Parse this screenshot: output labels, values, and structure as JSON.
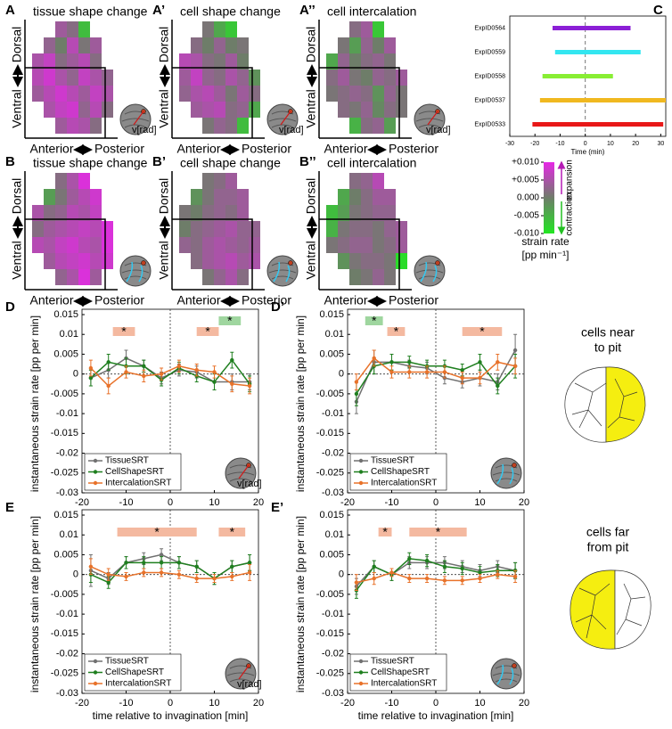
{
  "chart_data": [
    {
      "type": "heatmap",
      "panel": "A",
      "title": "tissue shape change",
      "icon_label": "v[rad]",
      "grid": [
        [
          null,
          null,
          0.004,
          0.002,
          -0.006,
          null,
          null
        ],
        [
          null,
          0.003,
          0.0,
          0.006,
          0.001,
          0.004,
          null
        ],
        [
          0.005,
          0.007,
          0.002,
          0.004,
          0.006,
          0.002,
          null
        ],
        [
          0.006,
          0.008,
          0.005,
          0.003,
          0.007,
          0.005,
          0.003
        ],
        [
          0.004,
          0.006,
          0.008,
          0.006,
          0.004,
          0.007,
          0.005
        ],
        [
          null,
          0.005,
          0.007,
          0.008,
          0.003,
          0.006,
          0.002
        ],
        [
          null,
          null,
          0.004,
          0.006,
          0.005,
          0.002,
          null
        ]
      ]
    },
    {
      "type": "heatmap",
      "panel": "A’",
      "title": "cell shape change",
      "icon_label": "v[rad]",
      "grid": [
        [
          null,
          null,
          0.001,
          -0.004,
          -0.007,
          null,
          null
        ],
        [
          null,
          0.002,
          0.0,
          0.003,
          0.0,
          0.001,
          null
        ],
        [
          0.006,
          0.005,
          0.002,
          0.001,
          0.004,
          0.0,
          null
        ],
        [
          0.004,
          0.007,
          0.003,
          0.002,
          0.005,
          0.003,
          -0.002
        ],
        [
          0.003,
          0.005,
          0.006,
          0.004,
          0.001,
          0.004,
          0.002
        ],
        [
          null,
          0.004,
          0.005,
          0.006,
          0.002,
          0.003,
          -0.004
        ],
        [
          null,
          null,
          0.001,
          0.003,
          0.002,
          -0.006,
          null
        ]
      ]
    },
    {
      "type": "heatmap",
      "panel": "A’’",
      "title": "cell intercalation",
      "icon_label": "v[rad]",
      "grid": [
        [
          null,
          null,
          0.002,
          0.004,
          -0.007,
          null,
          null
        ],
        [
          null,
          0.001,
          -0.003,
          0.003,
          0.0,
          0.004,
          null
        ],
        [
          -0.004,
          0.003,
          0.0,
          0.002,
          0.003,
          0.001,
          null
        ],
        [
          0.002,
          0.004,
          0.001,
          0.0,
          0.003,
          0.002,
          0.004
        ],
        [
          0.001,
          0.002,
          0.003,
          0.002,
          -0.002,
          0.003,
          0.001
        ],
        [
          null,
          0.002,
          0.001,
          0.003,
          -0.001,
          0.002,
          0.001
        ],
        [
          null,
          null,
          -0.005,
          0.002,
          0.003,
          -0.003,
          null
        ]
      ]
    },
    {
      "type": "heatmap",
      "panel": "B",
      "title": "tissue shape change",
      "grid": [
        [
          null,
          null,
          0.002,
          0.005,
          0.009,
          null,
          null
        ],
        [
          null,
          -0.003,
          0.001,
          0.004,
          0.006,
          0.008,
          null
        ],
        [
          0.005,
          0.002,
          0.003,
          0.006,
          0.005,
          0.007,
          null
        ],
        [
          0.002,
          0.004,
          0.005,
          0.006,
          0.007,
          0.006,
          0.009
        ],
        [
          0.006,
          0.005,
          0.007,
          0.008,
          0.006,
          0.005,
          0.009
        ],
        [
          null,
          0.004,
          0.006,
          0.007,
          0.008,
          0.006,
          0.008
        ],
        [
          null,
          null,
          0.003,
          0.005,
          0.009,
          0.004,
          null
        ]
      ]
    },
    {
      "type": "heatmap",
      "panel": "B’",
      "title": "cell shape change",
      "grid": [
        [
          null,
          null,
          0.001,
          0.002,
          0.004,
          null,
          null
        ],
        [
          null,
          -0.002,
          0.001,
          0.003,
          0.003,
          0.004,
          null
        ],
        [
          0.001,
          0.0,
          0.002,
          0.003,
          0.002,
          0.004,
          null
        ],
        [
          0.0,
          0.002,
          0.003,
          0.004,
          0.005,
          0.003,
          0.003
        ],
        [
          0.003,
          0.002,
          0.004,
          0.005,
          0.004,
          0.003,
          0.004
        ],
        [
          null,
          0.002,
          0.004,
          0.005,
          0.006,
          0.004,
          0.005
        ],
        [
          null,
          null,
          0.001,
          0.003,
          0.005,
          0.002,
          null
        ]
      ]
    },
    {
      "type": "heatmap",
      "panel": "B’’",
      "title": "cell intercalation",
      "grid": [
        [
          null,
          null,
          0.002,
          0.003,
          0.006,
          null,
          null
        ],
        [
          null,
          -0.004,
          0.0,
          0.002,
          0.004,
          0.004,
          null
        ],
        [
          -0.006,
          -0.003,
          0.001,
          0.002,
          0.003,
          0.003,
          null
        ],
        [
          -0.005,
          0.001,
          0.002,
          0.002,
          0.001,
          0.003,
          0.004
        ],
        [
          0.001,
          0.002,
          0.003,
          0.003,
          0.001,
          0.002,
          0.004
        ],
        [
          null,
          -0.002,
          0.001,
          0.002,
          0.002,
          0.001,
          -0.009
        ],
        [
          null,
          null,
          0.0,
          0.001,
          0.003,
          0.001,
          null
        ]
      ]
    },
    {
      "type": "range",
      "panel": "C",
      "xlabel": "Time (min)",
      "categories": [
        "ExpID0564",
        "ExpID0559",
        "ExpID0558",
        "ExpID0537",
        "ExpID0533"
      ],
      "ranges": [
        [
          -13,
          18
        ],
        [
          -12,
          22
        ],
        [
          -17,
          11
        ],
        [
          -18,
          32
        ],
        [
          -21,
          31
        ]
      ],
      "colors": [
        "#8b1fd6",
        "#33e6f0",
        "#88ee33",
        "#f0b820",
        "#e81818"
      ],
      "xlim": [
        -30,
        32
      ],
      "xticks": [
        -30,
        -20,
        -10,
        0,
        10,
        20,
        30
      ]
    },
    {
      "type": "line",
      "panel": "D",
      "icon_label": "v[rad]",
      "xlabel": "time relative to invagination [min]",
      "ylabel": "instantaneous strain rate [pp per min]",
      "x": [
        -18,
        -14,
        -10,
        -6,
        -2,
        2,
        6,
        10,
        14,
        18
      ],
      "xlim": [
        -20,
        20
      ],
      "xticks": [
        -20,
        -10,
        0,
        10,
        20
      ],
      "ylim": [
        -0.03,
        0.015
      ],
      "yticks": [
        -0.03,
        -0.025,
        -0.02,
        -0.015,
        -0.01,
        -0.005,
        0,
        0.005,
        0.01,
        0.015
      ],
      "series": [
        {
          "name": "TissueSRT",
          "color": "#707070",
          "values": [
            -0.001,
            0.001,
            0.004,
            0.002,
            -0.001,
            0.001,
            0.0005,
            -0.002,
            -0.002,
            -0.002
          ],
          "errors": [
            0.002,
            0.002,
            0.002,
            0.0015,
            0.0015,
            0.0015,
            0.0015,
            0.002,
            0.002,
            0.002
          ]
        },
        {
          "name": "CellShapeSRT",
          "color": "#1f7f1f",
          "values": [
            -0.001,
            0.003,
            0.002,
            0.002,
            -0.0015,
            0.0015,
            -0.0005,
            -0.002,
            0.0035,
            -0.0025
          ],
          "errors": [
            0.002,
            0.002,
            0.002,
            0.0015,
            0.0015,
            0.0015,
            0.0015,
            0.002,
            0.002,
            0.002
          ]
        },
        {
          "name": "IntercalationSRT",
          "color": "#e8722a",
          "values": [
            0.0015,
            -0.003,
            0.0005,
            -0.0005,
            0,
            0.002,
            0.001,
            0.0005,
            -0.0025,
            -0.003
          ],
          "errors": [
            0.002,
            0.002,
            0.0015,
            0.0015,
            0.0015,
            0.0015,
            0.0015,
            0.0015,
            0.002,
            0.002
          ]
        }
      ],
      "significance": [
        {
          "x": [
            -13,
            -8
          ],
          "color": "#f4b9a0",
          "label": "*"
        },
        {
          "x": [
            6,
            11
          ],
          "color": "#f4b9a0",
          "label": "*"
        },
        {
          "x": [
            11,
            16
          ],
          "color": "#9fd69f",
          "label": "*"
        }
      ]
    },
    {
      "type": "line",
      "panel": "D’",
      "xlabel": "time relative to invagination [min]",
      "ylabel": "instantaneous strain rate [pp per min]",
      "x": [
        -18,
        -14,
        -10,
        -6,
        -2,
        2,
        6,
        10,
        14,
        18
      ],
      "xlim": [
        -20,
        20
      ],
      "xticks": [
        -20,
        -10,
        0,
        10,
        20
      ],
      "ylim": [
        -0.03,
        0.015
      ],
      "yticks": [
        -0.03,
        -0.025,
        -0.02,
        -0.015,
        -0.01,
        -0.005,
        0,
        0.005,
        0.01,
        0.015
      ],
      "series": [
        {
          "name": "TissueSRT",
          "color": "#707070",
          "values": [
            -0.007,
            0.003,
            0.003,
            0.002,
            0.0015,
            -0.001,
            -0.002,
            -0.001,
            -0.002,
            0.006
          ],
          "errors": [
            0.003,
            0.003,
            0.002,
            0.0015,
            0.0015,
            0.0015,
            0.0015,
            0.002,
            0.002,
            0.004
          ]
        },
        {
          "name": "CellShapeSRT",
          "color": "#1f7f1f",
          "values": [
            -0.005,
            0.002,
            0.003,
            0.003,
            0.002,
            0.002,
            0.001,
            0.003,
            -0.003,
            0.002
          ],
          "errors": [
            0.003,
            0.002,
            0.002,
            0.0015,
            0.0015,
            0.0015,
            0.0015,
            0.002,
            0.002,
            0.003
          ]
        },
        {
          "name": "IntercalationSRT",
          "color": "#e8722a",
          "values": [
            -0.002,
            0.004,
            0.0005,
            0.0005,
            0.0005,
            0.0005,
            -0.001,
            -0.001,
            0.003,
            0.002
          ],
          "errors": [
            0.002,
            0.002,
            0.0015,
            0.0015,
            0.0015,
            0.0015,
            0.0015,
            0.0015,
            0.002,
            0.002
          ]
        }
      ],
      "significance": [
        {
          "x": [
            -16,
            -12
          ],
          "color": "#9fd69f",
          "label": "*"
        },
        {
          "x": [
            -11,
            -7
          ],
          "color": "#f4b9a0",
          "label": "*"
        },
        {
          "x": [
            6,
            15
          ],
          "color": "#f4b9a0",
          "label": "*"
        }
      ]
    },
    {
      "type": "line",
      "panel": "E",
      "icon_label": "v[rad]",
      "xlabel": "time relative to invagination [min]",
      "ylabel": "instantaneous strain rate [pp per min]",
      "x": [
        -18,
        -14,
        -10,
        -6,
        -2,
        2,
        6,
        10,
        14,
        18
      ],
      "xlim": [
        -20,
        20
      ],
      "xticks": [
        -20,
        -10,
        0,
        10,
        20
      ],
      "ylim": [
        -0.03,
        0.015
      ],
      "yticks": [
        -0.03,
        -0.025,
        -0.02,
        -0.015,
        -0.01,
        -0.005,
        0,
        0.005,
        0.01,
        0.015
      ],
      "series": [
        {
          "name": "TissueSRT",
          "color": "#707070",
          "values": [
            0.001,
            -0.001,
            0.003,
            0.004,
            0.005,
            0.003,
            0.002,
            -0.001,
            0.002,
            0.003
          ],
          "errors": [
            0.004,
            0.0015,
            0.0015,
            0.0015,
            0.0015,
            0.0015,
            0.0015,
            0.0015,
            0.0015,
            0.002
          ]
        },
        {
          "name": "CellShapeSRT",
          "color": "#1f7f1f",
          "values": [
            0,
            -0.002,
            0.003,
            0.003,
            0.003,
            0.003,
            0.002,
            -0.001,
            0.002,
            0.003
          ],
          "errors": [
            0.002,
            0.0015,
            0.0015,
            0.0015,
            0.0015,
            0.0015,
            0.0015,
            0.0015,
            0.0015,
            0.002
          ]
        },
        {
          "name": "IntercalationSRT",
          "color": "#e8722a",
          "values": [
            0.002,
            0,
            -0.0005,
            0.0005,
            0.0005,
            0,
            -0.001,
            -0.001,
            -0.0005,
            0.0005
          ],
          "errors": [
            0.002,
            0.0015,
            0.001,
            0.001,
            0.001,
            0.001,
            0.001,
            0.001,
            0.001,
            0.002
          ]
        }
      ],
      "significance": [
        {
          "x": [
            -12,
            6
          ],
          "color": "#f4b9a0",
          "label": "*"
        },
        {
          "x": [
            11,
            17
          ],
          "color": "#f4b9a0",
          "label": "*"
        }
      ]
    },
    {
      "type": "line",
      "panel": "E’",
      "xlabel": "time relative to invagination [min]",
      "ylabel": "instantaneous strain rate [pp per min]",
      "x": [
        -18,
        -14,
        -10,
        -6,
        -2,
        2,
        6,
        10,
        14,
        18
      ],
      "xlim": [
        -20,
        20
      ],
      "xticks": [
        -20,
        -10,
        0,
        10,
        20
      ],
      "ylim": [
        -0.03,
        0.015
      ],
      "yticks": [
        -0.03,
        -0.025,
        -0.02,
        -0.015,
        -0.01,
        -0.005,
        0,
        0.005,
        0.01,
        0.015
      ],
      "series": [
        {
          "name": "TissueSRT",
          "color": "#707070",
          "values": [
            -0.003,
            0.002,
            0,
            0.003,
            0.003,
            0.003,
            0.002,
            0.001,
            0.002,
            0.001
          ],
          "errors": [
            0.002,
            0.0015,
            0.0015,
            0.0015,
            0.0015,
            0.0015,
            0.0015,
            0.0015,
            0.0015,
            0.002
          ]
        },
        {
          "name": "CellShapeSRT",
          "color": "#1f7f1f",
          "values": [
            -0.004,
            0.002,
            0,
            0.004,
            0.0035,
            0.002,
            0.0015,
            0.0005,
            0.001,
            0.001
          ],
          "errors": [
            0.002,
            0.0015,
            0.0015,
            0.0015,
            0.0015,
            0.0015,
            0.0015,
            0.0015,
            0.0015,
            0.002
          ]
        },
        {
          "name": "IntercalationSRT",
          "color": "#e8722a",
          "values": [
            -0.002,
            -0.001,
            0.0005,
            -0.001,
            -0.001,
            -0.0015,
            -0.0015,
            -0.001,
            0,
            -0.0005
          ],
          "errors": [
            0.002,
            0.0015,
            0.001,
            0.001,
            0.001,
            0.001,
            0.001,
            0.001,
            0.001,
            0.0015
          ]
        }
      ],
      "significance": [
        {
          "x": [
            -13,
            -10
          ],
          "color": "#f4b9a0",
          "label": "*"
        },
        {
          "x": [
            -6,
            7
          ],
          "color": "#f4b9a0",
          "label": "*"
        }
      ]
    }
  ],
  "heatmap_axes": {
    "dorsal": "Dorsal",
    "ventral": "Ventral",
    "anterior": "Anterior",
    "posterior": "Posterior"
  },
  "heatmap_scale": {
    "ticks": [
      {
        "value": 0.01,
        "label": "+0.010"
      },
      {
        "value": 0.005,
        "label": "+0.005"
      },
      {
        "value": 0,
        "label": "0.000"
      },
      {
        "value": -0.005,
        "label": "-0.005"
      },
      {
        "value": -0.01,
        "label": "-0.010"
      }
    ],
    "colors": {
      "negative": "#22e622",
      "zero": "#6e7d69",
      "positive": "#e628e6"
    },
    "expansion": "expansion",
    "contraction": "contraction",
    "label": "strain rate",
    "unit": "[pp min⁻¹]"
  },
  "cell_groups": [
    {
      "lines": [
        "cells near",
        "to pit"
      ]
    },
    {
      "lines": [
        "cells far",
        "from pit"
      ]
    }
  ]
}
